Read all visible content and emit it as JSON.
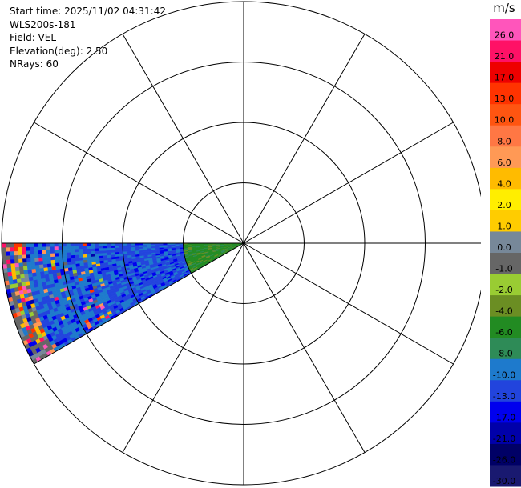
{
  "info": {
    "start_time": "Start time: 2025/11/02 04:31:42",
    "station": "WLS200s-181",
    "field": "Field: VEL",
    "elevation": "Elevation(deg): 2.50",
    "nrays": "NRays: 60"
  },
  "colorbar": {
    "unit": "m/s",
    "segments": [
      {
        "label": "26.0",
        "color": "#ff55bb"
      },
      {
        "label": "21.0",
        "color": "#ff1166"
      },
      {
        "label": "17.0",
        "color": "#ee0000"
      },
      {
        "label": "13.0",
        "color": "#ff3300"
      },
      {
        "label": "10.0",
        "color": "#ff5511"
      },
      {
        "label": "8.0",
        "color": "#ff7744"
      },
      {
        "label": "6.0",
        "color": "#ff9955"
      },
      {
        "label": "4.0",
        "color": "#ffbb00"
      },
      {
        "label": "2.0",
        "color": "#ffee00"
      },
      {
        "label": "1.0",
        "color": "#ffcc00"
      },
      {
        "label": "0.0",
        "color": "#778899"
      },
      {
        "label": "-1.0",
        "color": "#666666"
      },
      {
        "label": "-2.0",
        "color": "#99cc33"
      },
      {
        "label": "-4.0",
        "color": "#6b8e23"
      },
      {
        "label": "-6.0",
        "color": "#228b22"
      },
      {
        "label": "-8.0",
        "color": "#2e8b57"
      },
      {
        "label": "-10.0",
        "color": "#1e7acc"
      },
      {
        "label": "-13.0",
        "color": "#2244dd"
      },
      {
        "label": "-17.0",
        "color": "#0000ee"
      },
      {
        "label": "-21.0",
        "color": "#0000aa"
      },
      {
        "label": "-26.0",
        "color": "#000066"
      },
      {
        "label": "-30.0",
        "color": "#191970"
      }
    ]
  },
  "chart_data": {
    "type": "heatmap",
    "subtype": "radar PPI sector",
    "field": "VEL",
    "unit": "m/s",
    "sector_azimuth_deg": [
      240,
      270
    ],
    "range_rings": 4,
    "azimuth_spokes_deg": 30,
    "grid": true,
    "dominant_values_by_range": [
      {
        "range_fraction": [
          0.0,
          0.25
        ],
        "value": -6.0
      },
      {
        "range_fraction": [
          0.25,
          0.6
        ],
        "value": -13.0
      },
      {
        "range_fraction": [
          0.6,
          0.9
        ],
        "value": -10.0
      },
      {
        "range_fraction": [
          0.9,
          1.0
        ],
        "value": "mixed/noise"
      }
    ]
  }
}
